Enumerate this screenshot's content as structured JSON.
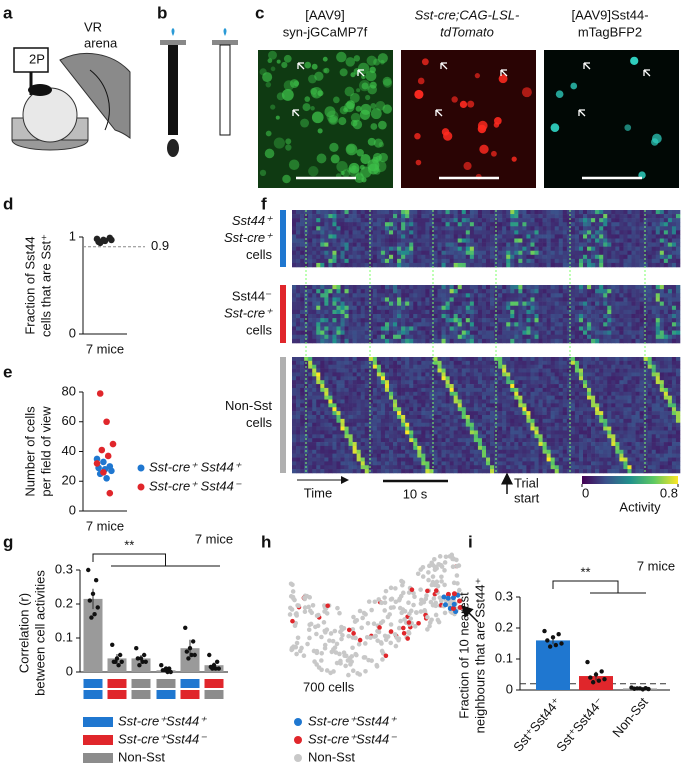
{
  "panel_a": {
    "letter": "a",
    "labels": [
      "2P",
      "VR",
      "arena"
    ]
  },
  "panel_b": {
    "letter": "b"
  },
  "panel_c": {
    "letter": "c",
    "images": [
      {
        "title": [
          "[AAV9]",
          "syn-jGCaMP7f"
        ]
      },
      {
        "title": [
          "Sst-cre;CAG-LSL-",
          "tdTomato"
        ]
      },
      {
        "title": [
          "[AAV9]Sst44-",
          "mTagBFP2"
        ]
      }
    ]
  },
  "panel_h": {
    "letter": "h",
    "count_label": "700 cells",
    "legend": [
      {
        "name": "Sst-cre⁺Sst44⁺",
        "color": "#1f77d0"
      },
      {
        "name": "Sst-cre⁺Sst44⁻",
        "color": "#e0262b"
      },
      {
        "name": "Non-Sst",
        "color": "#c8c8c8"
      }
    ]
  },
  "chart_data": [
    {
      "type": "strip",
      "panel": "d",
      "ylabel": [
        "Fraction of Sst44",
        "cells that are Sst⁺"
      ],
      "categories": [
        "7 mice"
      ],
      "values": [
        0.98,
        0.97,
        0.99,
        0.95,
        0.96,
        0.97,
        0.94
      ],
      "color": "#222",
      "ylim": [
        0,
        1
      ],
      "yticks": [
        0,
        1
      ],
      "hline": 0.9
    },
    {
      "type": "strip",
      "panel": "e",
      "ylabel": [
        "Number of cells",
        "per field of view"
      ],
      "categories": [
        "7 mice"
      ],
      "ylim": [
        0,
        80
      ],
      "yticks": [
        0,
        20,
        40,
        60,
        80
      ],
      "series": [
        {
          "name": "Sst-cre⁺ Sst44⁺",
          "color": "#1f77d0",
          "values": [
            35,
            33,
            30,
            29,
            28,
            27,
            25,
            22
          ]
        },
        {
          "name": "Sst-cre⁺ Sst44⁻",
          "color": "#e0262b",
          "values": [
            79,
            60,
            45,
            41,
            37,
            32,
            26,
            12
          ]
        }
      ]
    },
    {
      "type": "heatmap",
      "panel": "f",
      "groups": [
        {
          "label": [
            "Sst44⁺",
            "Sst-cre⁺",
            "cells"
          ],
          "color": "#1f77d0"
        },
        {
          "label": [
            "Sst44⁻",
            "Sst-cre⁺",
            "cells"
          ],
          "color": "#e0262b"
        },
        {
          "label": [
            "Non-Sst",
            "cells"
          ],
          "color": "#b0b0b0"
        }
      ],
      "time_label": "Time",
      "scale_bar_label": "10 s",
      "trial_label": [
        "Trial",
        "start"
      ],
      "clim": [
        0,
        0.8
      ],
      "colorbar_ticks": [
        0,
        0.8
      ],
      "colorbar_label": "Activity"
    },
    {
      "type": "bar",
      "panel": "g",
      "ylabel": [
        "Correlation (r)",
        "between cell activities"
      ],
      "values": [
        0.215,
        0.04,
        0.04,
        0.005,
        0.07,
        0.02
      ],
      "errors": [
        0.03,
        0.013,
        0.01,
        0.006,
        0.025,
        0.008
      ],
      "points": [
        [
          0.3,
          0.27,
          0.23,
          0.21,
          0.19,
          0.17,
          0.16
        ],
        [
          0.08,
          0.05,
          0.04,
          0.03,
          0.03,
          0.02,
          0.03
        ],
        [
          0.07,
          0.05,
          0.04,
          0.04,
          0.03,
          0.03,
          0.02
        ],
        [
          0.02,
          0.01,
          0.01,
          0.005,
          0,
          0,
          0.005
        ],
        [
          0.13,
          0.09,
          0.07,
          0.06,
          0.05,
          0.05,
          0.04
        ],
        [
          0.05,
          0.03,
          0.02,
          0.015,
          0.01,
          0.01,
          0.01
        ]
      ],
      "color": "#9a9a9a",
      "pair_colors": [
        [
          "#1f77d0",
          "#1f77d0"
        ],
        [
          "#e0262b",
          "#e0262b"
        ],
        [
          "#8c8c8c",
          "#8c8c8c"
        ],
        [
          "#8c8c8c",
          "#1f77d0"
        ],
        [
          "#1f77d0",
          "#e0262b"
        ],
        [
          "#e0262b",
          "#8c8c8c"
        ]
      ],
      "legend": [
        {
          "name": "Sst-cre⁺Sst44⁺",
          "color": "#1f77d0"
        },
        {
          "name": "Sst-cre⁺Sst44⁻",
          "color": "#e0262b"
        },
        {
          "name": "Non-Sst",
          "color": "#8c8c8c"
        }
      ],
      "ylim": [
        0,
        0.3
      ],
      "yticks": [
        0,
        0.1,
        0.2,
        0.3
      ],
      "annotation": "7 mice",
      "significance": "**"
    },
    {
      "type": "bar",
      "panel": "i",
      "ylabel": [
        "Fraction of 10 nearest",
        "neighbours that are Sst44⁺"
      ],
      "categories": [
        "Sst⁺Sst44⁺",
        "Sst⁺Sst44⁻",
        "Non-Sst"
      ],
      "values": [
        0.16,
        0.045,
        0.005
      ],
      "errors": [
        0.012,
        0.014,
        0.002
      ],
      "points": [
        [
          0.19,
          0.18,
          0.17,
          0.16,
          0.15,
          0.145,
          0.14
        ],
        [
          0.09,
          0.06,
          0.05,
          0.04,
          0.035,
          0.03,
          0.025
        ],
        [
          0.008,
          0.006,
          0.005,
          0.004,
          0.003,
          0.002,
          0.005
        ]
      ],
      "colors": [
        "#1f77d0",
        "#e0262b",
        "#9a9a9a"
      ],
      "hline": 0.02,
      "ylim": [
        0,
        0.3
      ],
      "yticks": [
        0,
        0.1,
        0.2,
        0.3
      ],
      "annotation": "7 mice",
      "significance": "**"
    }
  ]
}
